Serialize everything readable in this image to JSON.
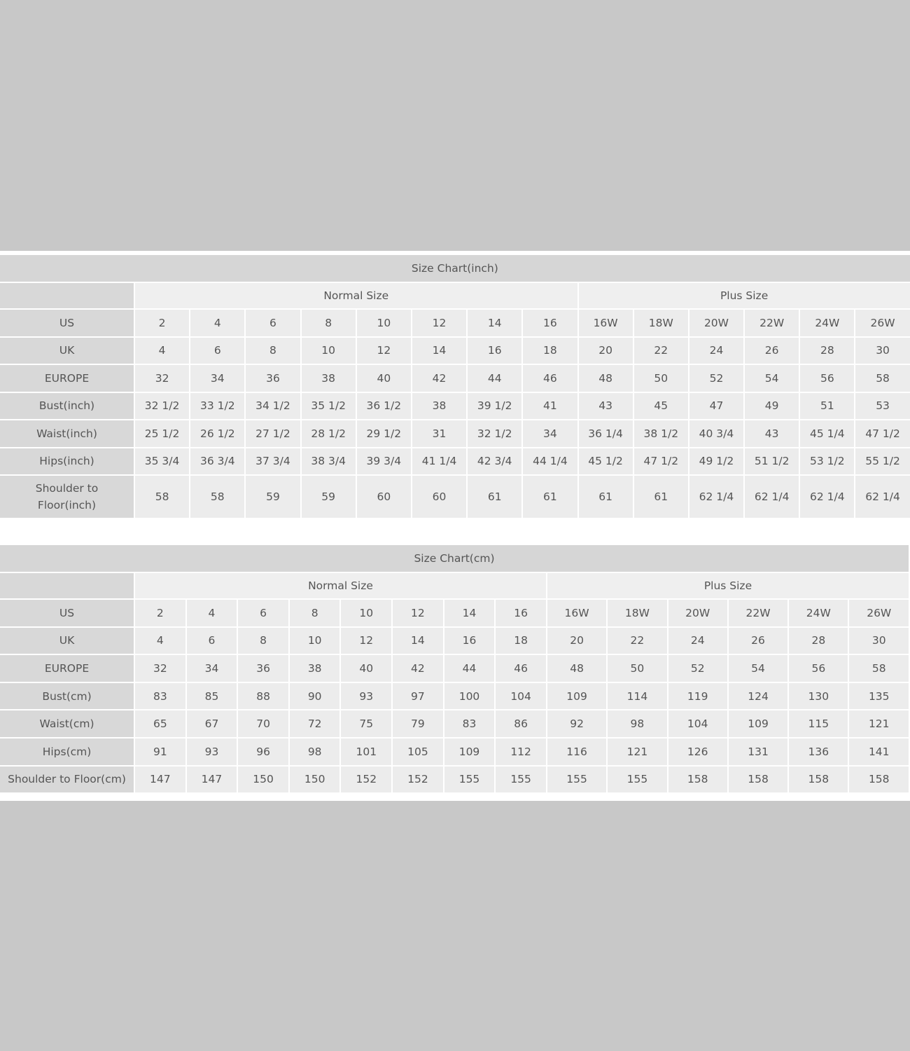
{
  "colors": {
    "background": "#c8c8c8",
    "title_bg": "#d6d6d6",
    "label_bg": "#d8d8d8",
    "cell_bg": "#ececec",
    "text": "#555555"
  },
  "chart_data": [
    {
      "type": "table",
      "title": "Size Chart(inch)",
      "column_groups": [
        {
          "label": "Normal Size",
          "span": 8
        },
        {
          "label": "Plus Size",
          "span": 6
        }
      ],
      "rows": [
        {
          "label": "US",
          "values": [
            "2",
            "4",
            "6",
            "8",
            "10",
            "12",
            "14",
            "16",
            "16W",
            "18W",
            "20W",
            "22W",
            "24W",
            "26W"
          ]
        },
        {
          "label": "UK",
          "values": [
            "4",
            "6",
            "8",
            "10",
            "12",
            "14",
            "16",
            "18",
            "20",
            "22",
            "24",
            "26",
            "28",
            "30"
          ]
        },
        {
          "label": "EUROPE",
          "values": [
            "32",
            "34",
            "36",
            "38",
            "40",
            "42",
            "44",
            "46",
            "48",
            "50",
            "52",
            "54",
            "56",
            "58"
          ]
        },
        {
          "label": "Bust(inch)",
          "values": [
            "32 1/2",
            "33 1/2",
            "34 1/2",
            "35 1/2",
            "36 1/2",
            "38",
            "39 1/2",
            "41",
            "43",
            "45",
            "47",
            "49",
            "51",
            "53"
          ]
        },
        {
          "label": "Waist(inch)",
          "values": [
            "25 1/2",
            "26 1/2",
            "27 1/2",
            "28 1/2",
            "29 1/2",
            "31",
            "32 1/2",
            "34",
            "36 1/4",
            "38 1/2",
            "40 3/4",
            "43",
            "45 1/4",
            "47 1/2"
          ]
        },
        {
          "label": "Hips(inch)",
          "values": [
            "35 3/4",
            "36 3/4",
            "37 3/4",
            "38 3/4",
            "39 3/4",
            "41 1/4",
            "42 3/4",
            "44 1/4",
            "45 1/2",
            "47 1/2",
            "49 1/2",
            "51 1/2",
            "53 1/2",
            "55 1/2"
          ]
        },
        {
          "label": "Shoulder to Floor(inch)",
          "values": [
            "58",
            "58",
            "59",
            "59",
            "60",
            "60",
            "61",
            "61",
            "61",
            "61",
            "62 1/4",
            "62 1/4",
            "62 1/4",
            "62 1/4"
          ]
        }
      ]
    },
    {
      "type": "table",
      "title": "Size Chart(cm)",
      "column_groups": [
        {
          "label": "Normal Size",
          "span": 8
        },
        {
          "label": "Plus Size",
          "span": 6
        }
      ],
      "rows": [
        {
          "label": "US",
          "values": [
            "2",
            "4",
            "6",
            "8",
            "10",
            "12",
            "14",
            "16",
            "16W",
            "18W",
            "20W",
            "22W",
            "24W",
            "26W"
          ]
        },
        {
          "label": "UK",
          "values": [
            "4",
            "6",
            "8",
            "10",
            "12",
            "14",
            "16",
            "18",
            "20",
            "22",
            "24",
            "26",
            "28",
            "30"
          ]
        },
        {
          "label": "EUROPE",
          "values": [
            "32",
            "34",
            "36",
            "38",
            "40",
            "42",
            "44",
            "46",
            "48",
            "50",
            "52",
            "54",
            "56",
            "58"
          ]
        },
        {
          "label": "Bust(cm)",
          "values": [
            "83",
            "85",
            "88",
            "90",
            "93",
            "97",
            "100",
            "104",
            "109",
            "114",
            "119",
            "124",
            "130",
            "135"
          ]
        },
        {
          "label": "Waist(cm)",
          "values": [
            "65",
            "67",
            "70",
            "72",
            "75",
            "79",
            "83",
            "86",
            "92",
            "98",
            "104",
            "109",
            "115",
            "121"
          ]
        },
        {
          "label": "Hips(cm)",
          "values": [
            "91",
            "93",
            "96",
            "98",
            "101",
            "105",
            "109",
            "112",
            "116",
            "121",
            "126",
            "131",
            "136",
            "141"
          ]
        },
        {
          "label": "Shoulder to Floor(cm)",
          "values": [
            "147",
            "147",
            "150",
            "150",
            "152",
            "152",
            "155",
            "155",
            "155",
            "155",
            "158",
            "158",
            "158",
            "158"
          ]
        }
      ]
    }
  ]
}
